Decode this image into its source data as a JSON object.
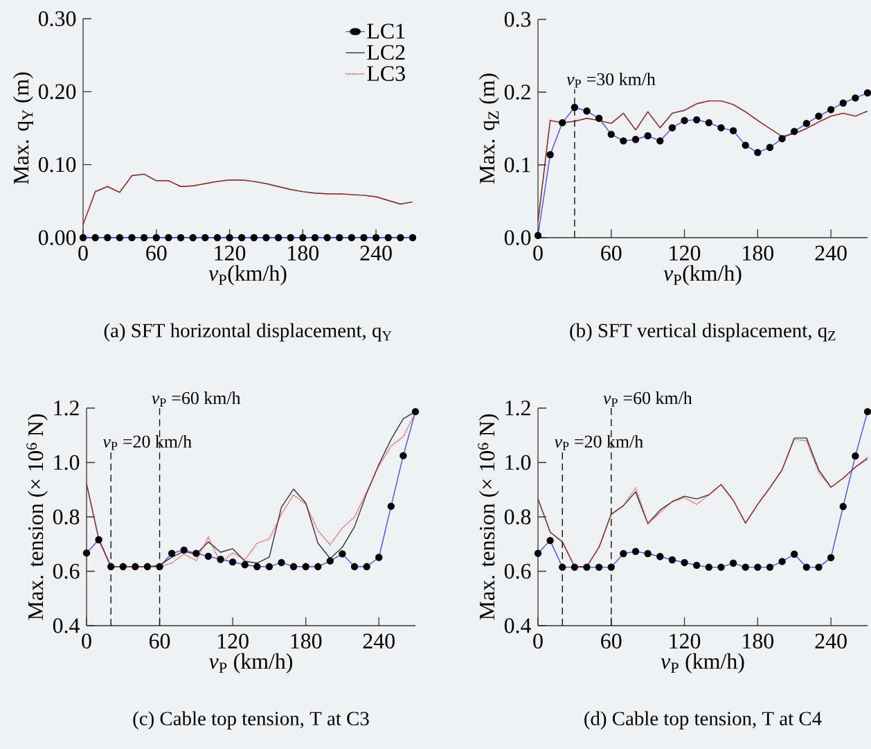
{
  "chart_data": [
    {
      "type": "line",
      "title": "(a) SFT horizontal displacement, q$_{Y}$",
      "xlabel": "*v*$_{P}$(km/h)",
      "ylabel": "Max. q$_{Y}$ (m)",
      "x": [
        0,
        10,
        20,
        30,
        40,
        50,
        60,
        70,
        80,
        90,
        100,
        110,
        120,
        130,
        140,
        150,
        160,
        170,
        180,
        190,
        200,
        210,
        220,
        230,
        240,
        250,
        260,
        270
      ],
      "xlim": [
        0,
        270
      ],
      "xticks": [
        0,
        60,
        120,
        180,
        240
      ],
      "ylim": [
        0,
        0.3
      ],
      "yticks": [
        {
          "value": 0,
          "label": "0.00"
        },
        {
          "value": 0.1,
          "label": "0.10"
        },
        {
          "value": 0.2,
          "label": "0.20"
        },
        {
          "value": 0.3,
          "label": "0.30"
        }
      ],
      "legend": "top right",
      "series": [
        {
          "name": "LC1",
          "color": "#4a4aff",
          "marker": "circle",
          "values": [
            0,
            0,
            0,
            0,
            0,
            0,
            0,
            0,
            0,
            0,
            0,
            0,
            0,
            0,
            0,
            0,
            0,
            0,
            0,
            0,
            0,
            0,
            0,
            0,
            0,
            0,
            0,
            0
          ]
        },
        {
          "name": "LC2",
          "color": "#333333",
          "values": [
            0.018,
            0.063,
            0.07,
            0.062,
            0.085,
            0.087,
            0.078,
            0.078,
            0.07,
            0.071,
            0.074,
            0.077,
            0.079,
            0.079,
            0.077,
            0.074,
            0.07,
            0.066,
            0.063,
            0.061,
            0.06,
            0.06,
            0.059,
            0.058,
            0.056,
            0.051,
            0.046,
            0.049
          ]
        },
        {
          "name": "LC3",
          "color": "#e82020",
          "line_style": "dotted",
          "values": [
            0.018,
            0.063,
            0.07,
            0.062,
            0.085,
            0.087,
            0.078,
            0.078,
            0.07,
            0.071,
            0.074,
            0.077,
            0.079,
            0.079,
            0.077,
            0.074,
            0.07,
            0.066,
            0.063,
            0.061,
            0.06,
            0.06,
            0.059,
            0.058,
            0.056,
            0.051,
            0.046,
            0.049
          ]
        }
      ]
    },
    {
      "type": "line",
      "title": "(b) SFT vertical displacement, q$_{Z}$",
      "xlabel": "*v*$_{P}$(km/h)",
      "ylabel": "Max. q$_{Z}$ (m)",
      "x": [
        0,
        10,
        20,
        30,
        40,
        50,
        60,
        70,
        80,
        90,
        100,
        110,
        120,
        130,
        140,
        150,
        160,
        170,
        180,
        190,
        200,
        210,
        220,
        230,
        240,
        250,
        260,
        270
      ],
      "xlim": [
        0,
        270
      ],
      "xticks": [
        0,
        60,
        120,
        180,
        240
      ],
      "ylim": [
        0,
        0.3
      ],
      "yticks": [
        {
          "value": 0,
          "label": "0.0"
        },
        {
          "value": 0.1,
          "label": "0.1"
        },
        {
          "value": 0.2,
          "label": "0.2"
        },
        {
          "value": 0.3,
          "label": "0.3"
        }
      ],
      "ref_lines": [
        {
          "axis": "x",
          "value": 30,
          "label": "*v*$_{P}$ =30 km/h",
          "line_style": "dashed"
        }
      ],
      "series": [
        {
          "color": "#4a4aff",
          "marker": "circle",
          "values": [
            0.003,
            0.114,
            0.158,
            0.179,
            0.174,
            0.164,
            0.142,
            0.133,
            0.135,
            0.14,
            0.133,
            0.151,
            0.161,
            0.162,
            0.158,
            0.151,
            0.147,
            0.127,
            0.117,
            0.124,
            0.136,
            0.146,
            0.157,
            0.167,
            0.176,
            0.185,
            0.192,
            0.199
          ]
        },
        {
          "color": "#333333",
          "values": [
            0.022,
            0.161,
            0.158,
            0.16,
            0.164,
            0.161,
            0.157,
            0.171,
            0.148,
            0.173,
            0.151,
            0.171,
            0.175,
            0.184,
            0.188,
            0.188,
            0.183,
            0.173,
            0.161,
            0.15,
            0.139,
            0.143,
            0.15,
            0.159,
            0.167,
            0.171,
            0.167,
            0.174
          ]
        },
        {
          "color": "#e82020",
          "line_style": "dotted",
          "values": [
            0.022,
            0.161,
            0.158,
            0.16,
            0.164,
            0.161,
            0.157,
            0.171,
            0.148,
            0.173,
            0.151,
            0.171,
            0.175,
            0.184,
            0.188,
            0.188,
            0.183,
            0.173,
            0.161,
            0.15,
            0.139,
            0.143,
            0.15,
            0.159,
            0.167,
            0.171,
            0.167,
            0.174
          ]
        }
      ]
    },
    {
      "type": "line",
      "title": "(c) Cable top tension, T at C3",
      "xlabel": "*v*$_{P}$ (km/h)",
      "ylabel": "Max. tension (× 10$^{6}$ N)",
      "x": [
        0,
        10,
        20,
        30,
        40,
        50,
        60,
        70,
        80,
        90,
        100,
        110,
        120,
        130,
        140,
        150,
        160,
        170,
        180,
        190,
        200,
        210,
        220,
        230,
        240,
        250,
        260,
        270
      ],
      "xlim": [
        0,
        270
      ],
      "xticks": [
        0,
        60,
        120,
        180,
        240
      ],
      "ylim": [
        0.4,
        1.2
      ],
      "yticks": [
        0.4,
        0.6,
        0.8,
        {
          "value": 1.0,
          "label": "1.0"
        },
        1.2
      ],
      "ref_lines": [
        {
          "axis": "x",
          "value": 20,
          "label": "*v*$_{P}$ =20 km/h",
          "line_style": "dashed"
        },
        {
          "axis": "x",
          "value": 60,
          "label": "*v*$_{P}$ =60 km/h",
          "line_style": "dashed"
        }
      ],
      "series": [
        {
          "color": "#4a4aff",
          "marker": "circle",
          "values": [
            0.667,
            0.716,
            0.617,
            0.617,
            0.617,
            0.617,
            0.617,
            0.666,
            0.678,
            0.666,
            0.655,
            0.644,
            0.634,
            0.624,
            0.617,
            0.617,
            0.632,
            0.617,
            0.617,
            0.617,
            0.638,
            0.664,
            0.617,
            0.617,
            0.651,
            0.839,
            1.025,
            1.187
          ]
        },
        {
          "color": "#333333",
          "values": [
            0.922,
            0.719,
            0.617,
            0.617,
            0.617,
            0.617,
            0.622,
            0.652,
            0.673,
            0.663,
            0.708,
            0.67,
            0.683,
            0.637,
            0.63,
            0.652,
            0.836,
            0.902,
            0.851,
            0.703,
            0.647,
            0.688,
            0.764,
            0.887,
            0.993,
            1.085,
            1.161,
            1.187
          ]
        },
        {
          "color": "#e82020",
          "line_style": "dotted",
          "values": [
            0.922,
            0.719,
            0.617,
            0.617,
            0.617,
            0.617,
            0.617,
            0.63,
            0.663,
            0.639,
            0.726,
            0.63,
            0.668,
            0.642,
            0.703,
            0.719,
            0.81,
            0.881,
            0.846,
            0.749,
            0.698,
            0.759,
            0.8,
            0.892,
            0.988,
            1.06,
            1.095,
            1.182
          ]
        }
      ]
    },
    {
      "type": "line",
      "title": "(d) Cable top tension, T at C4",
      "xlabel": "*v*$_{P}$ (km/h)",
      "ylabel": "Max. tension (× 10$^{6}$ N)",
      "x": [
        0,
        10,
        20,
        30,
        40,
        50,
        60,
        70,
        80,
        90,
        100,
        110,
        120,
        130,
        140,
        150,
        160,
        170,
        180,
        190,
        200,
        210,
        220,
        230,
        240,
        250,
        260,
        270
      ],
      "xlim": [
        0,
        270
      ],
      "xticks": [
        0,
        60,
        120,
        180,
        240
      ],
      "ylim": [
        0.4,
        1.2
      ],
      "yticks": [
        0.4,
        0.6,
        0.8,
        {
          "value": 1.0,
          "label": "1.0"
        },
        1.2
      ],
      "ref_lines": [
        {
          "axis": "x",
          "value": 20,
          "label": "*v*$_{P}$ =20 km/h",
          "line_style": "dashed"
        },
        {
          "axis": "x",
          "value": 60,
          "label": "*v*$_{P}$ =60 km/h",
          "line_style": "dashed"
        }
      ],
      "series": [
        {
          "color": "#4a4aff",
          "marker": "circle",
          "values": [
            0.666,
            0.713,
            0.615,
            0.615,
            0.615,
            0.615,
            0.615,
            0.665,
            0.673,
            0.665,
            0.654,
            0.642,
            0.632,
            0.622,
            0.615,
            0.615,
            0.63,
            0.615,
            0.615,
            0.615,
            0.636,
            0.663,
            0.615,
            0.615,
            0.65,
            0.838,
            1.024,
            1.187
          ]
        },
        {
          "color": "#333333",
          "values": [
            0.866,
            0.744,
            0.708,
            0.617,
            0.617,
            0.688,
            0.81,
            0.841,
            0.892,
            0.775,
            0.825,
            0.856,
            0.876,
            0.866,
            0.881,
            0.919,
            0.861,
            0.777,
            0.846,
            0.907,
            0.973,
            1.09,
            1.09,
            0.973,
            0.909,
            0.942,
            0.983,
            1.014
          ]
        },
        {
          "color": "#e82020",
          "line_style": "dotted",
          "values": [
            0.866,
            0.744,
            0.708,
            0.617,
            0.617,
            0.688,
            0.81,
            0.841,
            0.907,
            0.775,
            0.815,
            0.856,
            0.871,
            0.846,
            0.881,
            0.919,
            0.861,
            0.777,
            0.846,
            0.907,
            0.973,
            1.085,
            1.08,
            0.963,
            0.909,
            0.942,
            0.983,
            1.019
          ]
        }
      ]
    }
  ]
}
